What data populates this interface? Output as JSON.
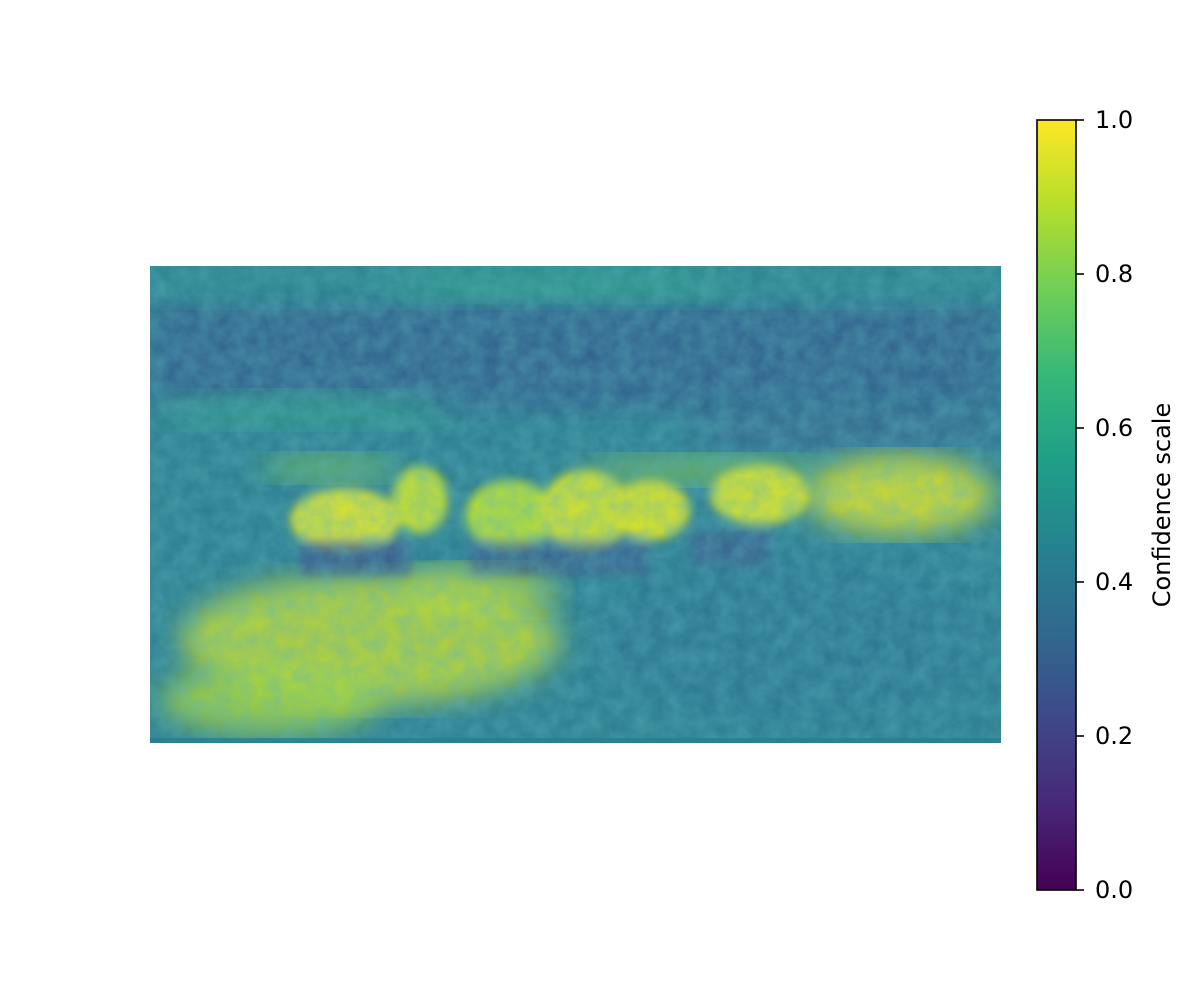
{
  "chart_data": {
    "type": "heatmap",
    "title": "",
    "xlabel": "",
    "ylabel": "",
    "axes_visible": false,
    "grid": false,
    "image": {
      "content": "confidence map of a landscape scene with a herd of horses standing in a meadow",
      "colormap": "viridis",
      "value_range": [
        0.0,
        1.0
      ]
    },
    "colorbar": {
      "label": "Confidence scale",
      "placement": "right",
      "range": [
        0.0,
        1.0
      ],
      "ticks": [
        0.0,
        0.2,
        0.4,
        0.6,
        0.8,
        1.0
      ],
      "tick_labels": [
        "0.0",
        "0.2",
        "0.4",
        "0.6",
        "0.8",
        "1.0"
      ],
      "colormap": "viridis"
    }
  },
  "colors": {
    "viridis_stops": [
      "#440154",
      "#482878",
      "#3e4989",
      "#31688e",
      "#26828e",
      "#1f9e89",
      "#35b779",
      "#6ece58",
      "#b5de2b",
      "#fde725"
    ],
    "image_background": "#2a7d8e",
    "image_edge_tint": "#27808e"
  }
}
